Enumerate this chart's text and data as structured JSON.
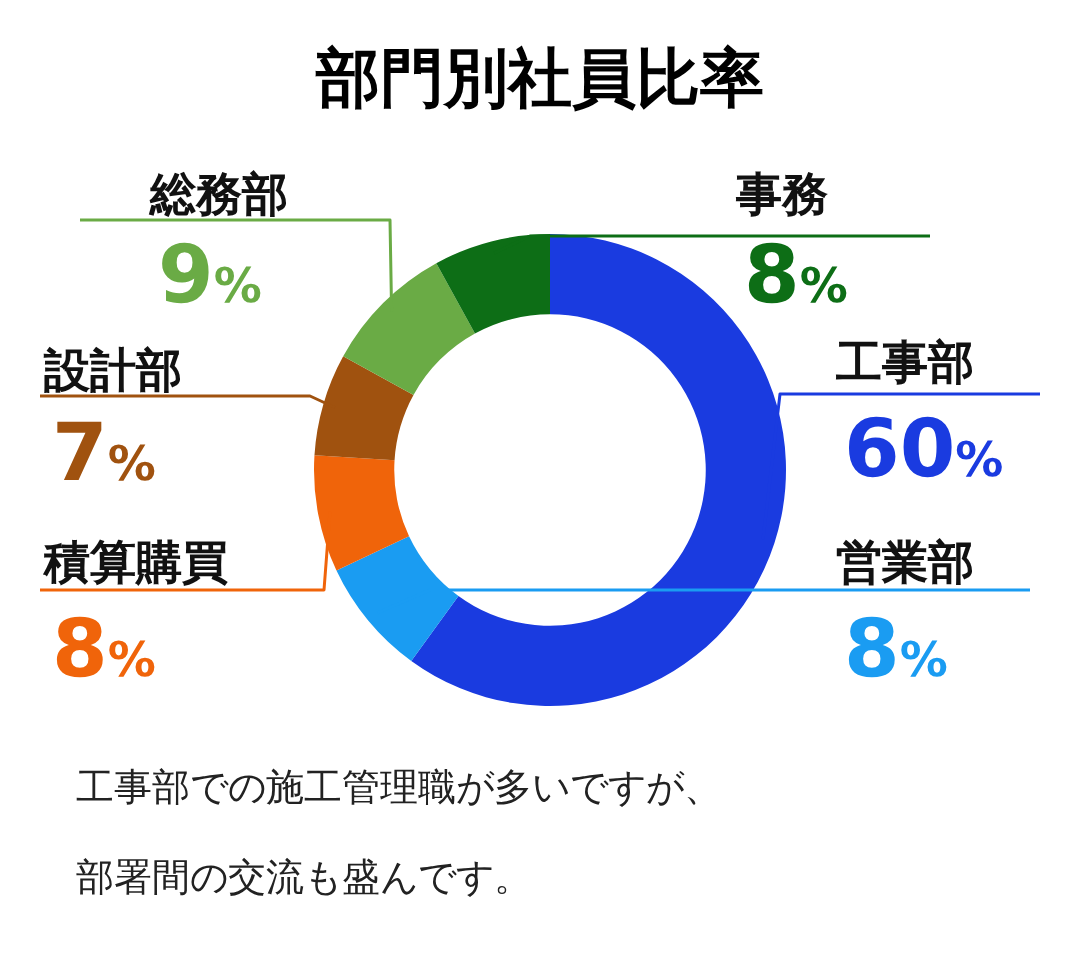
{
  "chart_data": {
    "type": "donut",
    "title": "部門別社員比率",
    "categories": [
      "工事部",
      "営業部",
      "積算購買",
      "設計部",
      "総務部",
      "事務"
    ],
    "values": [
      60,
      8,
      8,
      7,
      9,
      8
    ],
    "colors": [
      "#1a3be0",
      "#1a9cf2",
      "#f0640a",
      "#a0520f",
      "#6aab45",
      "#0d6e16"
    ],
    "value_labels": [
      "60%",
      "8%",
      "8%",
      "7%",
      "9%",
      "8%"
    ],
    "legend": false,
    "annotations": [
      "工事部での施工管理職が多いですが、",
      "部署間の交流も盛んです。"
    ]
  }
}
